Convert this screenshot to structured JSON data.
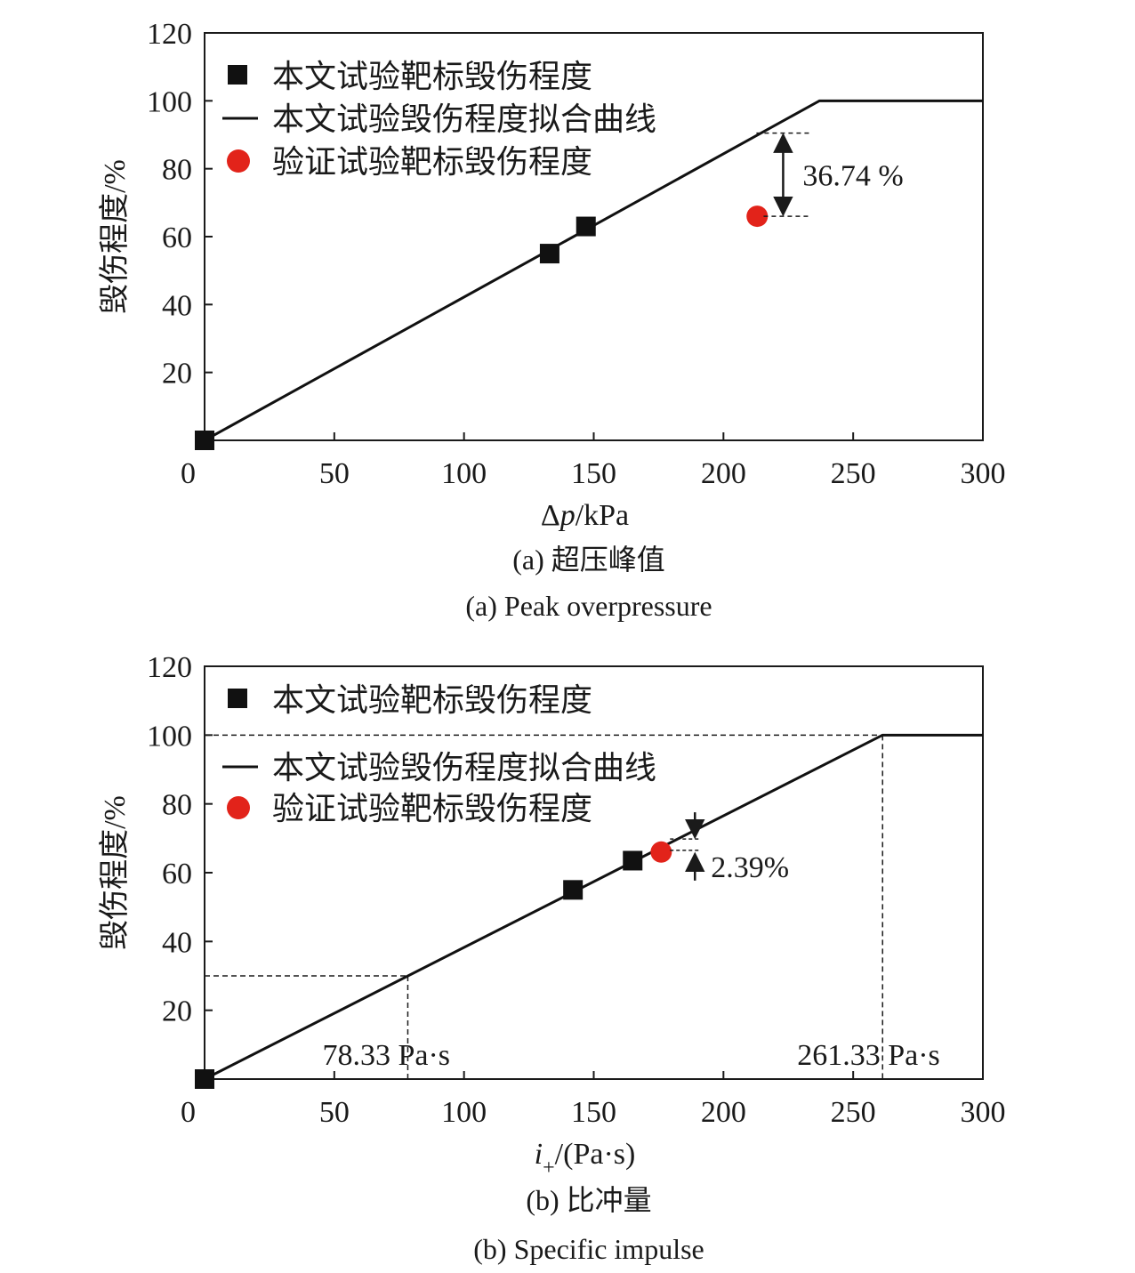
{
  "chart_data": [
    {
      "type": "line",
      "panel_caption_cn": "(a) 超压峰值",
      "panel_caption_en": "(a) Peak overpressure",
      "xlabel_prefix": "Δ",
      "xlabel_var": "p",
      "xlabel_unit": "/kPa",
      "ylabel": "毁伤程度/%",
      "xlim": [
        0,
        300
      ],
      "ylim": [
        0,
        120
      ],
      "xticks": [
        "0",
        "50",
        "100",
        "150",
        "200",
        "250",
        "300"
      ],
      "yticks": [
        "20",
        "40",
        "60",
        "80",
        "100",
        "120"
      ],
      "legend": [
        {
          "marker": "square",
          "label": "本文试验靶标毁伤程度"
        },
        {
          "marker": "line",
          "label": "本文试验毁伤程度拟合曲线"
        },
        {
          "marker": "circle",
          "label": "验证试验靶标毁伤程度"
        }
      ],
      "series": [
        {
          "name": "本文试验靶标毁伤程度",
          "kind": "scatter-square",
          "x": [
            0,
            133,
            147
          ],
          "y": [
            0,
            55,
            63
          ]
        },
        {
          "name": "本文试验毁伤程度拟合曲线",
          "kind": "line",
          "x": [
            0,
            237,
            300
          ],
          "y": [
            0,
            100,
            100
          ]
        },
        {
          "name": "验证试验靶标毁伤程度",
          "kind": "scatter-circle",
          "x": [
            213
          ],
          "y": [
            66
          ]
        }
      ],
      "annotation": {
        "text": "36.74 %",
        "x": 223,
        "y_top": 90.5,
        "y_bottom": 66
      }
    },
    {
      "type": "line",
      "panel_caption_cn": "(b) 比冲量",
      "panel_caption_en": "(b) Specific impulse",
      "xlabel_var": "i",
      "xlabel_sub": "+",
      "xlabel_unit": "/(Pa·s)",
      "ylabel": "毁伤程度/%",
      "xlim": [
        0,
        300
      ],
      "ylim": [
        0,
        120
      ],
      "xticks": [
        "0",
        "50",
        "100",
        "150",
        "200",
        "250",
        "300"
      ],
      "yticks": [
        "20",
        "40",
        "60",
        "80",
        "100",
        "120"
      ],
      "legend": [
        {
          "marker": "square",
          "label": "本文试验靶标毁伤程度"
        },
        {
          "marker": "line",
          "label": "本文试验毁伤程度拟合曲线"
        },
        {
          "marker": "circle",
          "label": "验证试验靶标毁伤程度"
        }
      ],
      "series": [
        {
          "name": "本文试验靶标毁伤程度",
          "kind": "scatter-square",
          "x": [
            0,
            142,
            165
          ],
          "y": [
            0,
            55,
            63.5
          ]
        },
        {
          "name": "本文试验毁伤程度拟合曲线",
          "kind": "line",
          "x": [
            0,
            261.33,
            300
          ],
          "y": [
            0,
            100,
            100
          ]
        },
        {
          "name": "验证试验靶标毁伤程度",
          "kind": "scatter-circle",
          "x": [
            176
          ],
          "y": [
            66
          ]
        }
      ],
      "reference_lines": [
        {
          "x": 78.33,
          "y": 30,
          "label": "78.33 Pa·s"
        },
        {
          "x": 261.33,
          "y": 100,
          "label": "261.33 Pa·s"
        }
      ],
      "annotation": {
        "text": "2.39%",
        "x": 189,
        "y_top": 69.8,
        "y_bottom": 66.5
      }
    }
  ]
}
